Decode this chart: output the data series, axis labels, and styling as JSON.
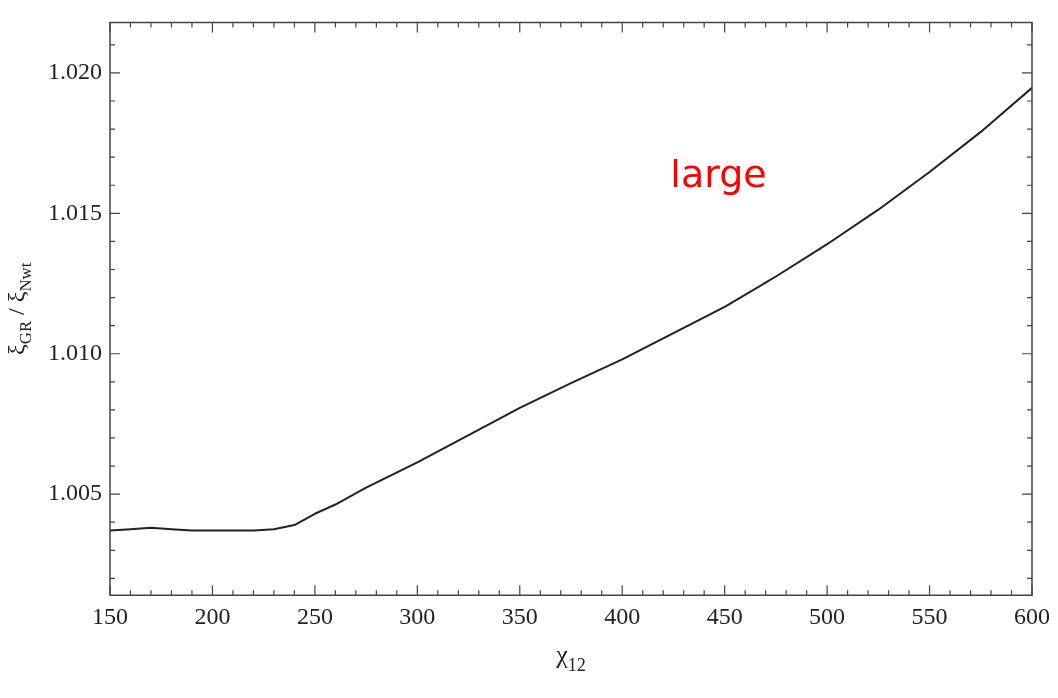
{
  "chart_data": {
    "type": "line",
    "xlabel": "χ$_{12}$",
    "ylabel": "ξ$_{GR}$ / ξ$_{Nwt}$",
    "annotations": [
      "large"
    ],
    "x": [
      150,
      160,
      170,
      180,
      190,
      200,
      210,
      220,
      230,
      240,
      250,
      260,
      275,
      300,
      325,
      350,
      375,
      400,
      425,
      450,
      475,
      500,
      525,
      550,
      575,
      600
    ],
    "series": [
      {
        "color": "#222222",
        "values": [
          1.0037,
          1.00375,
          1.0038,
          1.00375,
          1.0037,
          1.0037,
          1.0037,
          1.0037,
          1.00375,
          1.0039,
          1.0043,
          1.00463,
          1.00523,
          1.00613,
          1.0071,
          1.00807,
          1.00895,
          1.0098,
          1.01073,
          1.01167,
          1.01275,
          1.0139,
          1.01513,
          1.01647,
          1.0179,
          1.01947
        ]
      }
    ],
    "xlim": [
      150,
      600
    ],
    "xticks": [
      150,
      {
        "value": 160,
        "label": null
      },
      {
        "value": 170,
        "label": null
      },
      {
        "value": 180,
        "label": null
      },
      {
        "value": 190,
        "label": null
      },
      200,
      {
        "value": 210,
        "label": null
      },
      {
        "value": 220,
        "label": null
      },
      {
        "value": 230,
        "label": null
      },
      {
        "value": 240,
        "label": null
      },
      250,
      {
        "value": 260,
        "label": null
      },
      {
        "value": 270,
        "label": null
      },
      {
        "value": 280,
        "label": null
      },
      {
        "value": 290,
        "label": null
      },
      300,
      {
        "value": 310,
        "label": null
      },
      {
        "value": 320,
        "label": null
      },
      {
        "value": 330,
        "label": null
      },
      {
        "value": 340,
        "label": null
      },
      350,
      {
        "value": 360,
        "label": null
      },
      {
        "value": 370,
        "label": null
      },
      {
        "value": 380,
        "label": null
      },
      {
        "value": 390,
        "label": null
      },
      400,
      {
        "value": 410,
        "label": null
      },
      {
        "value": 420,
        "label": null
      },
      {
        "value": 430,
        "label": null
      },
      {
        "value": 440,
        "label": null
      },
      450,
      {
        "value": 460,
        "label": null
      },
      {
        "value": 470,
        "label": null
      },
      {
        "value": 480,
        "label": null
      },
      {
        "value": 490,
        "label": null
      },
      500,
      {
        "value": 510,
        "label": null
      },
      {
        "value": 520,
        "label": null
      },
      {
        "value": 530,
        "label": null
      },
      {
        "value": 540,
        "label": null
      },
      550,
      {
        "value": 560,
        "label": null
      },
      {
        "value": 570,
        "label": null
      },
      {
        "value": 580,
        "label": null
      },
      {
        "value": 590,
        "label": null
      },
      600
    ],
    "ylim": [
      1.0014,
      1.0218
    ],
    "yticks": [
      {
        "value": 1.002,
        "label": null
      },
      {
        "value": 1.003,
        "label": null
      },
      {
        "value": 1.004,
        "label": null
      },
      {
        "value": 1.005,
        "label": "1.005"
      },
      {
        "value": 1.006,
        "label": null
      },
      {
        "value": 1.007,
        "label": null
      },
      {
        "value": 1.008,
        "label": null
      },
      {
        "value": 1.009,
        "label": null
      },
      {
        "value": 1.01,
        "label": "1.010"
      },
      {
        "value": 1.011,
        "label": null
      },
      {
        "value": 1.012,
        "label": null
      },
      {
        "value": 1.013,
        "label": null
      },
      {
        "value": 1.014,
        "label": null
      },
      {
        "value": 1.015,
        "label": "1.015"
      },
      {
        "value": 1.016,
        "label": null
      },
      {
        "value": 1.017,
        "label": null
      },
      {
        "value": 1.018,
        "label": null
      },
      {
        "value": 1.019,
        "label": null
      },
      {
        "value": 1.02,
        "label": "1.020"
      },
      {
        "value": 1.021,
        "label": null
      }
    ],
    "grid": false,
    "legend": false,
    "marker": "none",
    "line_style": "solid"
  }
}
